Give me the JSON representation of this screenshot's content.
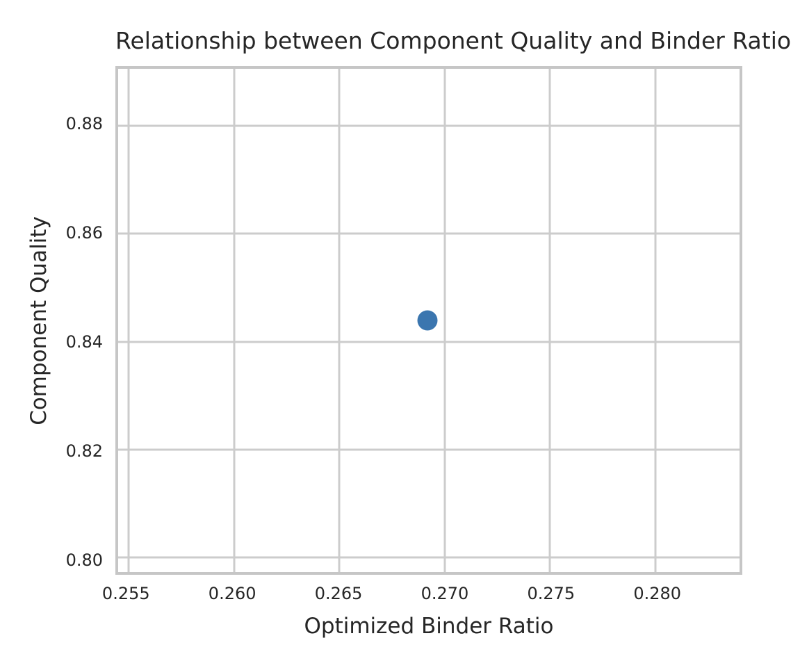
{
  "chart_data": {
    "type": "scatter",
    "title": "Relationship between Component Quality and Binder Ratio",
    "xlabel": "Optimized Binder Ratio",
    "ylabel": "Component Quality",
    "series": [
      {
        "name": "points",
        "color": "#3b76af",
        "points": [
          {
            "x": 0.2692,
            "y": 0.844
          }
        ]
      }
    ],
    "x_ticks": [
      {
        "value": 0.255,
        "label": "0.255"
      },
      {
        "value": 0.26,
        "label": "0.260"
      },
      {
        "value": 0.265,
        "label": "0.265"
      },
      {
        "value": 0.27,
        "label": "0.270"
      },
      {
        "value": 0.275,
        "label": "0.275"
      },
      {
        "value": 0.28,
        "label": "0.280"
      }
    ],
    "y_ticks": [
      {
        "value": 0.8,
        "label": "0.80"
      },
      {
        "value": 0.82,
        "label": "0.82"
      },
      {
        "value": 0.84,
        "label": "0.84"
      },
      {
        "value": 0.86,
        "label": "0.86"
      },
      {
        "value": 0.88,
        "label": "0.88"
      }
    ],
    "xlim": [
      0.2545,
      0.284
    ],
    "ylim": [
      0.7973,
      0.8906
    ],
    "grid": true,
    "legend": "none",
    "colors": {
      "point": "#3b76af",
      "gridline": "#cccccc",
      "axes_border": "#c6c6c6",
      "text": "#262626",
      "background": "#ffffff"
    }
  }
}
